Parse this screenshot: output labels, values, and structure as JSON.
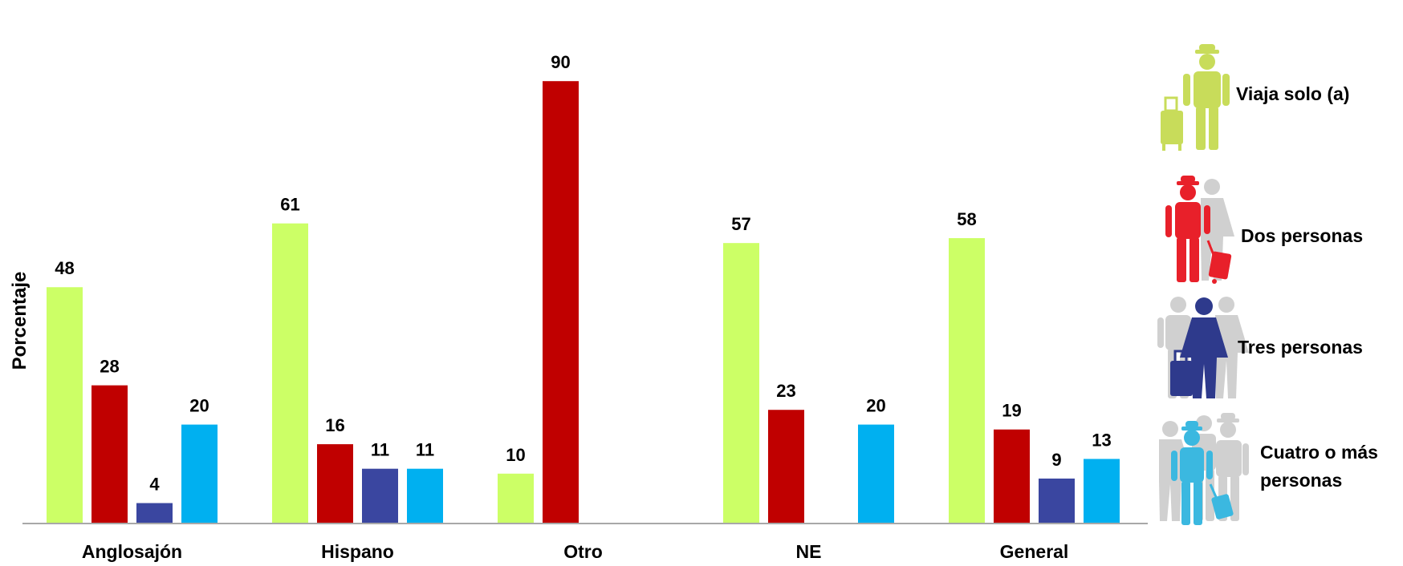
{
  "chart_data": {
    "type": "bar",
    "ylabel": "Porcentaje",
    "xlabel": "",
    "categories": [
      "Anglosajón",
      "Hispano",
      "Otro",
      "NE",
      "General"
    ],
    "ylim": [
      0,
      100
    ],
    "grid": false,
    "legend_position": "right",
    "series": [
      {
        "name": "Viaja solo (a)",
        "color": "#CCFF66",
        "values": [
          48,
          61,
          10,
          57,
          58
        ]
      },
      {
        "name": "Dos personas",
        "color": "#C00000",
        "values": [
          28,
          16,
          90,
          23,
          19
        ]
      },
      {
        "name": "Tres personas",
        "color": "#3A46A0",
        "values": [
          4,
          11,
          null,
          null,
          9
        ]
      },
      {
        "name": "Cuatro o más personas",
        "color": "#00B0F0",
        "values": [
          20,
          11,
          null,
          20,
          13
        ]
      }
    ]
  },
  "legend": {
    "items": [
      {
        "lines": [
          "Viaja solo (a)"
        ],
        "icon": "person-with-luggage-icon",
        "icon_color": "#C8DC5A"
      },
      {
        "lines": [
          "Dos personas"
        ],
        "icon": "two-people-icon",
        "icon_color": "#E8202A"
      },
      {
        "lines": [
          "Tres personas"
        ],
        "icon": "three-people-icon",
        "icon_color": "#2E3A8C"
      },
      {
        "lines": [
          "Cuatro o más",
          "personas"
        ],
        "icon": "four-people-icon",
        "icon_color": "#3BB8E0"
      }
    ]
  }
}
